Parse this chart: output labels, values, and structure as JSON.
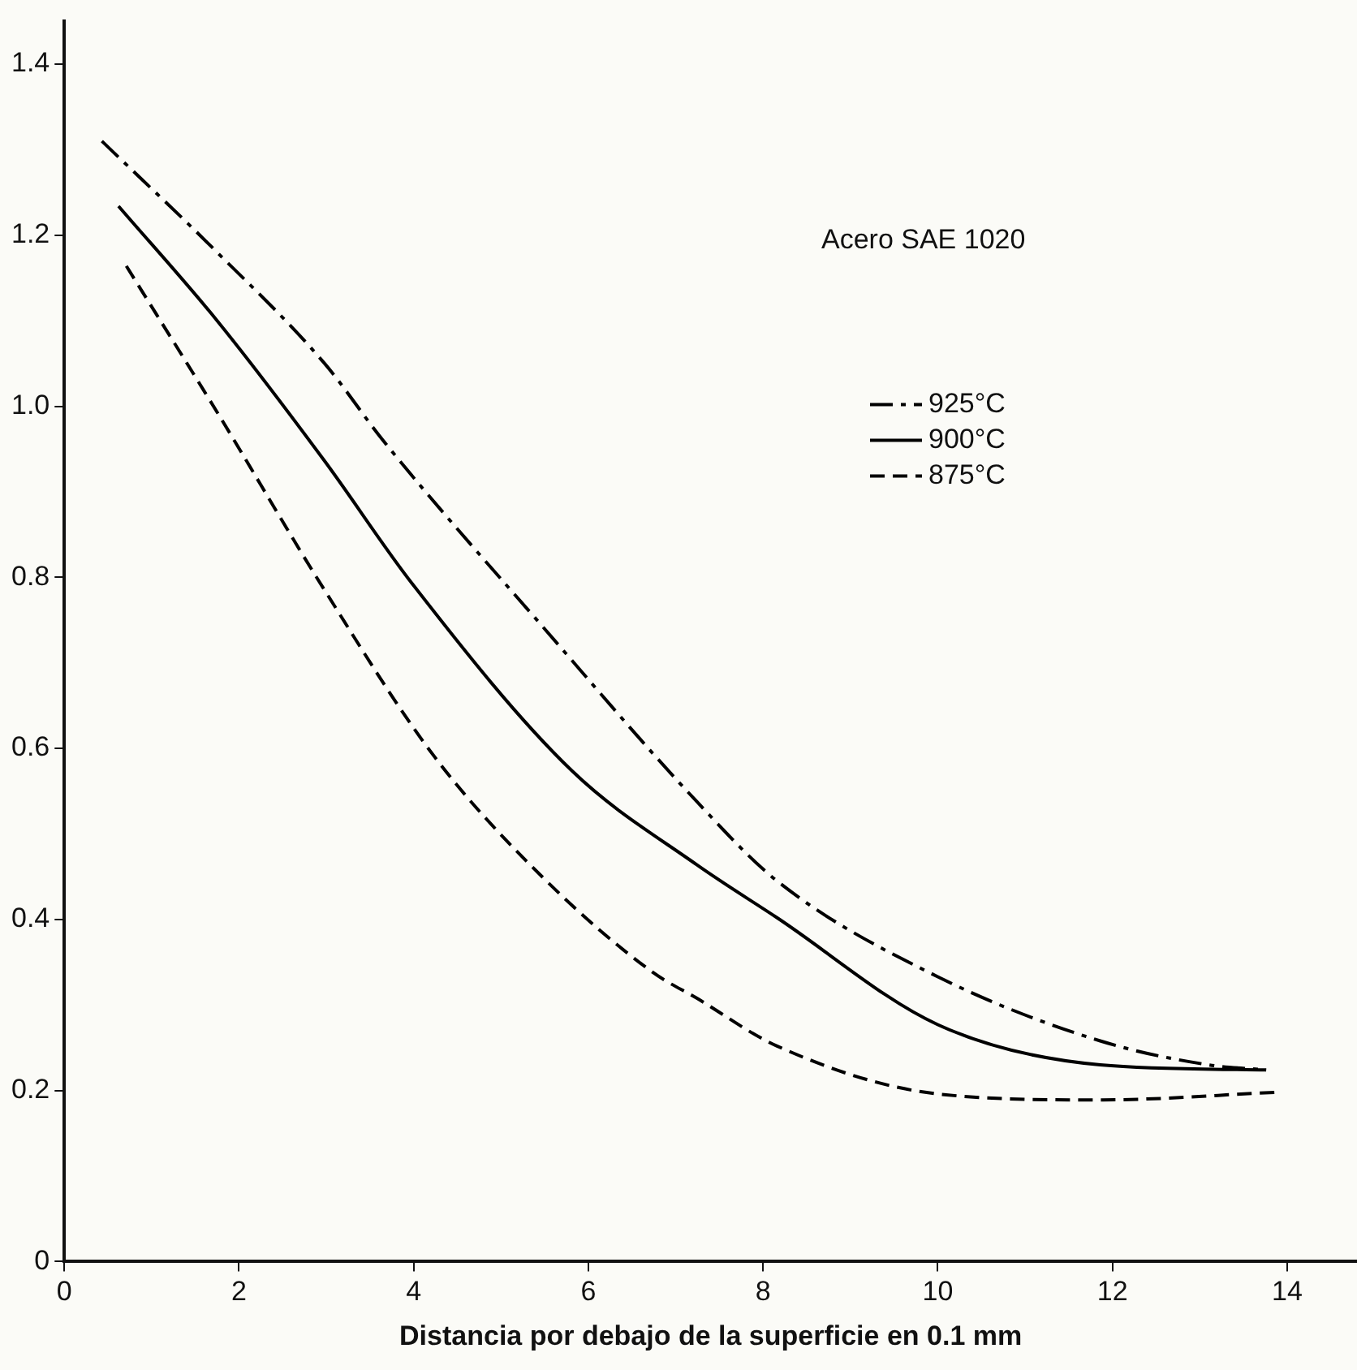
{
  "chart_data": {
    "type": "line",
    "xlabel": "Distancia por debajo de la superficie en 0.1 mm",
    "annotations": [
      "Acero SAE 1020"
    ],
    "xlim": [
      0,
      14.8
    ],
    "xticks": [
      0,
      2,
      4,
      6,
      8,
      10,
      12,
      14
    ],
    "ylim": [
      0,
      1.45
    ],
    "yticks": [
      0,
      0.2,
      0.4,
      0.6,
      0.8,
      {
        "value": 1,
        "label": "1.0"
      },
      1.2,
      1.4
    ],
    "grid": false,
    "legend": "top right",
    "marker": "none",
    "series": [
      {
        "name": "925°C",
        "color": "#000000",
        "line_style": "dashdot",
        "x": [
          0.43,
          1.75,
          2.98,
          3.65,
          5.48,
          7.24,
          8.16,
          10.0,
          11.86,
          13.1,
          13.76
        ],
        "values": [
          1.31,
          1.18,
          1.05,
          0.96,
          0.742,
          0.538,
          0.445,
          0.333,
          0.258,
          0.23,
          0.224
        ]
      },
      {
        "name": "900°C",
        "color": "#000000",
        "line_style": "solid",
        "x": [
          0.62,
          1.75,
          2.98,
          3.98,
          5.81,
          7.24,
          8.16,
          10.0,
          11.86,
          13.76
        ],
        "values": [
          1.234,
          1.1,
          0.936,
          0.793,
          0.574,
          0.464,
          0.402,
          0.277,
          0.23,
          0.224
        ]
      },
      {
        "name": "875°C",
        "color": "#000000",
        "line_style": "dashed",
        "x": [
          0.71,
          1.75,
          2.98,
          4.24,
          5.48,
          6.74,
          7.24,
          8.16,
          10.0,
          11.86,
          13.89
        ],
        "values": [
          1.164,
          0.993,
          0.785,
          0.59,
          0.449,
          0.338,
          0.308,
          0.252,
          0.196,
          0.189,
          0.198
        ]
      }
    ]
  }
}
